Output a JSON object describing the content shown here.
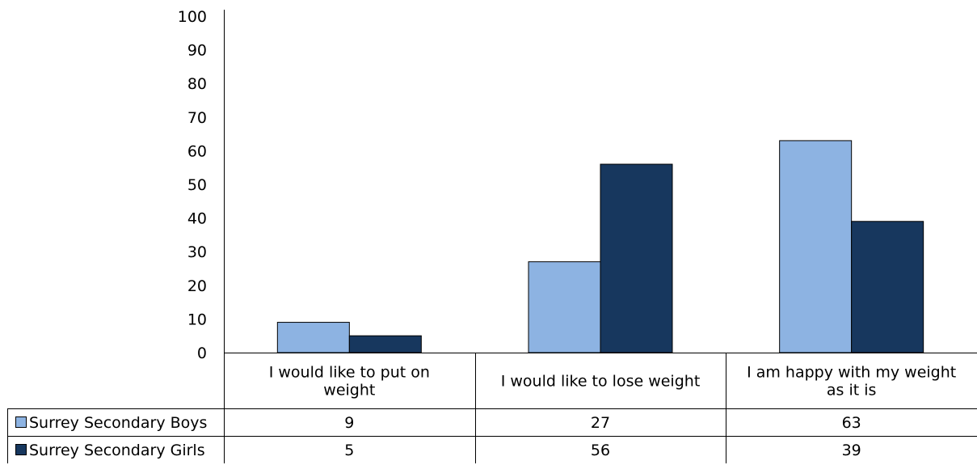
{
  "chart_data": {
    "type": "bar",
    "categories": [
      [
        "I would like to put on",
        "weight"
      ],
      [
        "I would like to lose weight"
      ],
      [
        "I am happy with my weight",
        "as it is"
      ]
    ],
    "series": [
      {
        "name": "Surrey Secondary Boys",
        "color": "#8DB3E2",
        "values": [
          9,
          27,
          63
        ]
      },
      {
        "name": "Surrey Secondary Girls",
        "color": "#17375E",
        "values": [
          5,
          56,
          39
        ]
      }
    ],
    "ylim": [
      0,
      100
    ],
    "yticks": [
      0,
      10,
      20,
      30,
      40,
      50,
      60,
      70,
      80,
      90,
      100
    ],
    "grid": false,
    "legend": "data-table",
    "title": "",
    "xlabel": "",
    "ylabel": ""
  }
}
